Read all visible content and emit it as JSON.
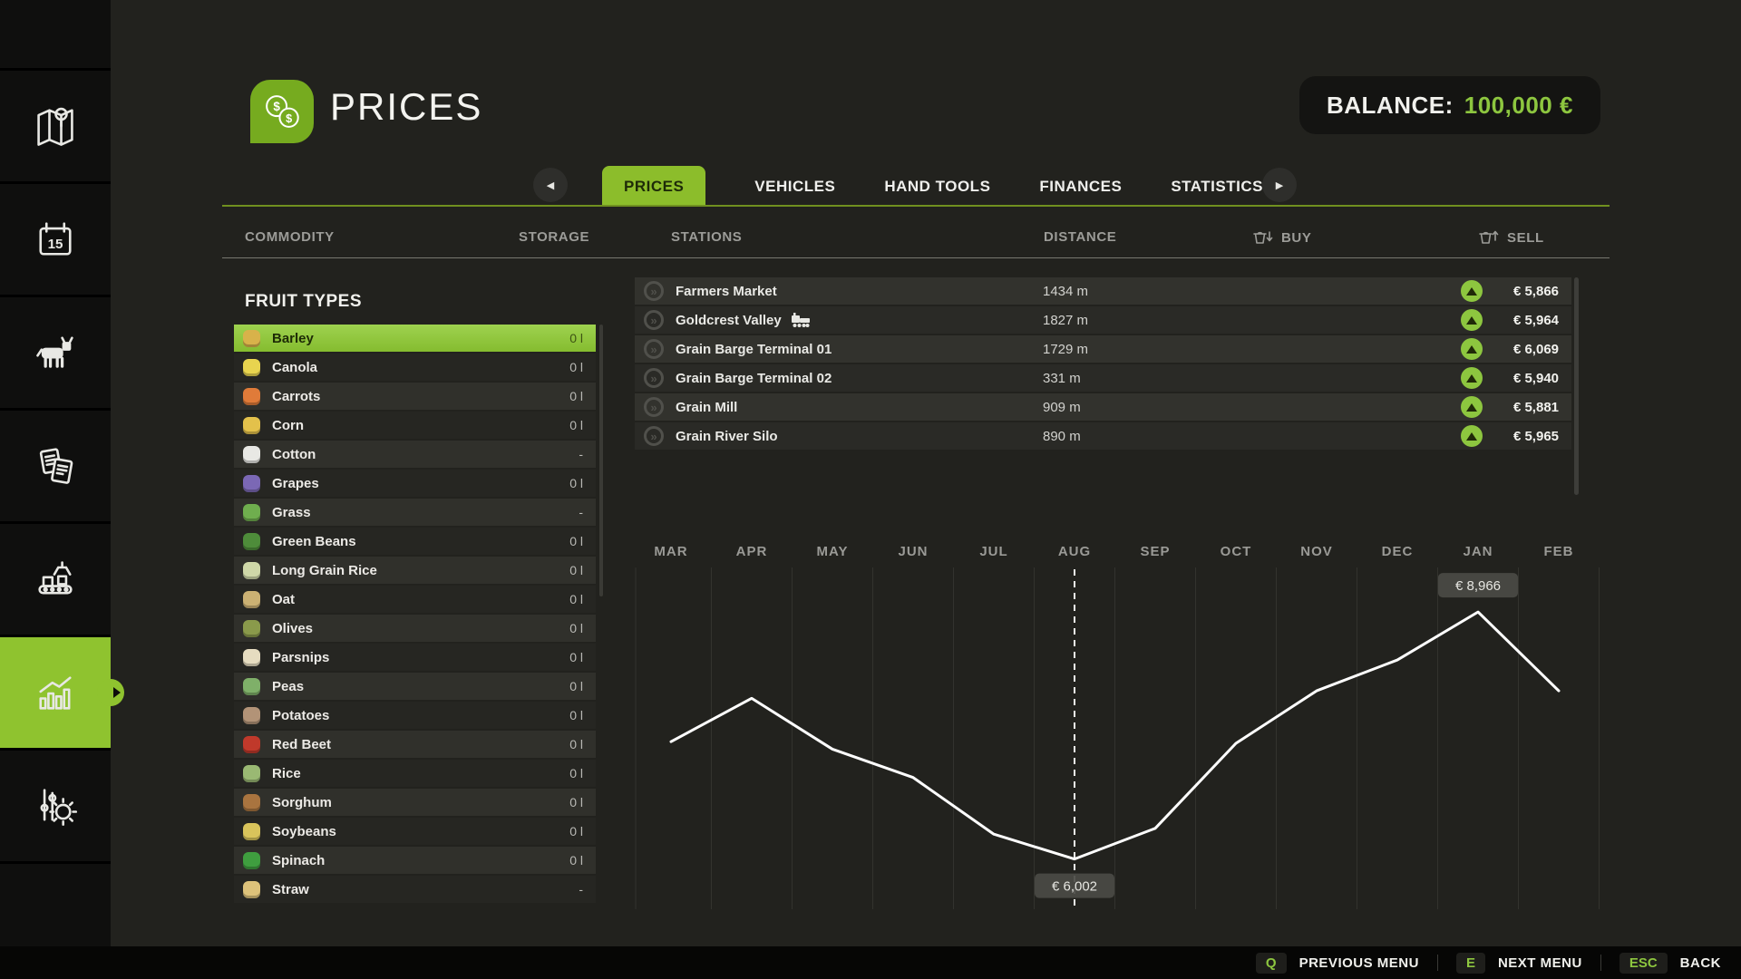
{
  "header": {
    "title": "PRICES",
    "title_icon": "money-coins-icon",
    "balance_label": "BALANCE:",
    "balance_value": "100,000 €"
  },
  "tabs": {
    "prev_arrow": "◀",
    "next_arrow": "▶",
    "items": [
      {
        "label": "PRICES",
        "active": true
      },
      {
        "label": "VEHICLES",
        "active": false
      },
      {
        "label": "HAND TOOLS",
        "active": false
      },
      {
        "label": "FINANCES",
        "active": false
      },
      {
        "label": "STATISTICS",
        "active": false
      }
    ]
  },
  "columns": {
    "commodity": "COMMODITY",
    "storage": "STORAGE",
    "stations": "STATIONS",
    "distance": "DISTANCE",
    "buy": "BUY",
    "sell": "SELL"
  },
  "commodities": {
    "group_title": "FRUIT TYPES",
    "selected": "Barley",
    "items": [
      {
        "name": "Barley",
        "storage": "0 l",
        "icon": "barley-icon",
        "icon_color": "#d8b24a"
      },
      {
        "name": "Canola",
        "storage": "0 l",
        "icon": "canola-icon",
        "icon_color": "#e8d44f"
      },
      {
        "name": "Carrots",
        "storage": "0 l",
        "icon": "carrot-icon",
        "icon_color": "#e07b39"
      },
      {
        "name": "Corn",
        "storage": "0 l",
        "icon": "corn-icon",
        "icon_color": "#e3c14b"
      },
      {
        "name": "Cotton",
        "storage": "-",
        "icon": "cotton-icon",
        "icon_color": "#e8e8e4"
      },
      {
        "name": "Grapes",
        "storage": "0 l",
        "icon": "grapes-icon",
        "icon_color": "#7b68b5"
      },
      {
        "name": "Grass",
        "storage": "-",
        "icon": "grass-icon",
        "icon_color": "#6fae4e"
      },
      {
        "name": "Green Beans",
        "storage": "0 l",
        "icon": "green-beans-icon",
        "icon_color": "#4e8c3a"
      },
      {
        "name": "Long Grain Rice",
        "storage": "0 l",
        "icon": "rice-icon",
        "icon_color": "#cfd8a8"
      },
      {
        "name": "Oat",
        "storage": "0 l",
        "icon": "oat-icon",
        "icon_color": "#cbb173"
      },
      {
        "name": "Olives",
        "storage": "0 l",
        "icon": "olives-icon",
        "icon_color": "#8a9a4b"
      },
      {
        "name": "Parsnips",
        "storage": "0 l",
        "icon": "parsnip-icon",
        "icon_color": "#e6dcc0"
      },
      {
        "name": "Peas",
        "storage": "0 l",
        "icon": "peas-icon",
        "icon_color": "#7fb069"
      },
      {
        "name": "Potatoes",
        "storage": "0 l",
        "icon": "potato-icon",
        "icon_color": "#b29377"
      },
      {
        "name": "Red Beet",
        "storage": "0 l",
        "icon": "red-beet-icon",
        "icon_color": "#c0392b"
      },
      {
        "name": "Rice",
        "storage": "0 l",
        "icon": "rice-icon",
        "icon_color": "#9ab973"
      },
      {
        "name": "Sorghum",
        "storage": "0 l",
        "icon": "sorghum-icon",
        "icon_color": "#a9743f"
      },
      {
        "name": "Soybeans",
        "storage": "0 l",
        "icon": "soybeans-icon",
        "icon_color": "#d9c45b"
      },
      {
        "name": "Spinach",
        "storage": "0 l",
        "icon": "spinach-icon",
        "icon_color": "#3f9e3f"
      },
      {
        "name": "Straw",
        "storage": "-",
        "icon": "straw-icon",
        "icon_color": "#ddc27a"
      }
    ]
  },
  "stations": {
    "rows": [
      {
        "name": "Farmers Market",
        "distance": "1434 m",
        "sell": "€ 5,866",
        "train": false,
        "trend": "up"
      },
      {
        "name": "Goldcrest Valley",
        "distance": "1827 m",
        "sell": "€ 5,964",
        "train": true,
        "trend": "up"
      },
      {
        "name": "Grain Barge Terminal 01",
        "distance": "1729 m",
        "sell": "€ 6,069",
        "train": false,
        "trend": "up"
      },
      {
        "name": "Grain Barge Terminal 02",
        "distance": "331 m",
        "sell": "€ 5,940",
        "train": false,
        "trend": "up"
      },
      {
        "name": "Grain Mill",
        "distance": "909 m",
        "sell": "€ 5,881",
        "train": false,
        "trend": "up"
      },
      {
        "name": "Grain River Silo",
        "distance": "890 m",
        "sell": "€ 5,965",
        "train": false,
        "trend": "up"
      }
    ]
  },
  "chart_data": {
    "type": "line",
    "categories": [
      "MAR",
      "APR",
      "MAY",
      "JUN",
      "JUL",
      "AUG",
      "SEP",
      "OCT",
      "NOV",
      "DEC",
      "JAN",
      "FEB"
    ],
    "values": [
      7410,
      7930,
      7320,
      6980,
      6300,
      6002,
      6370,
      7390,
      8020,
      8390,
      8966,
      8020
    ],
    "current_index": 5,
    "current_month": "AUG",
    "min_callout": "€ 6,002",
    "max_callout": "€ 8,966",
    "ylim": [
      5400,
      9500
    ],
    "grid": "vertical-month-boundaries",
    "legend": "none",
    "line_color": "#ffffff"
  },
  "sidebar": {
    "selected": "statistics",
    "calendar_day": "15",
    "items": [
      {
        "icon": "map-icon"
      },
      {
        "icon": "calendar-icon"
      },
      {
        "icon": "animals-icon"
      },
      {
        "icon": "contracts-icon"
      },
      {
        "icon": "production-icon"
      },
      {
        "icon": "statistics-icon"
      },
      {
        "icon": "settings-icon"
      }
    ]
  },
  "footer": {
    "shortcuts": [
      {
        "key": "Q",
        "label": "PREVIOUS MENU"
      },
      {
        "key": "E",
        "label": "NEXT MENU"
      },
      {
        "key": "ESC",
        "label": "BACK"
      }
    ]
  },
  "colors": {
    "accent_green": "#8dc63f",
    "tab_green": "#8cbd2b",
    "icon_green": "#76ab1f",
    "background": "#22221e",
    "row_light": "#30302b",
    "row_dark": "#262622"
  }
}
